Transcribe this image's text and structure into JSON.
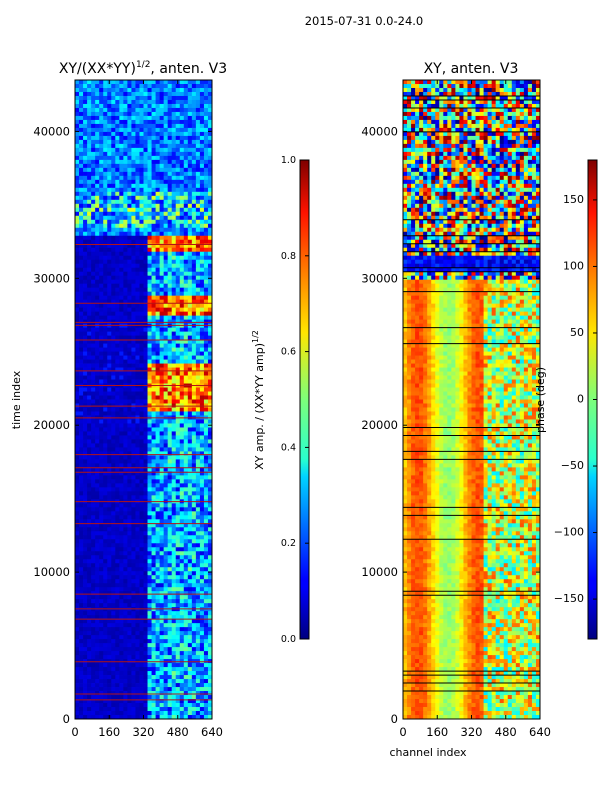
{
  "figure_title": "2015-07-31 0.0-24.0",
  "chart_data": [
    {
      "type": "heatmap",
      "title": "XY/(XX*YY)",
      "title_exponent": "1/2",
      "title_suffix": ", anten. V3",
      "xlabel": "",
      "ylabel": "time index",
      "xlim": [
        0,
        640
      ],
      "ylim": [
        0,
        43500
      ],
      "xticks": [
        0,
        160,
        320,
        480,
        640
      ],
      "yticks": [
        0,
        10000,
        20000,
        30000,
        40000
      ],
      "colorbar": {
        "label": "XY amp. / (XX*YY amp)",
        "label_exponent": "1/2",
        "range": [
          0.0,
          1.0
        ],
        "ticks": [
          0.0,
          0.2,
          0.4,
          0.6,
          0.8,
          1.0
        ],
        "tick_labels": [
          "0.0",
          "0.2",
          "0.4",
          "0.6",
          "0.8",
          "1.0"
        ]
      },
      "rfi_lines_time_index": [
        1300,
        1700,
        3900,
        6800,
        7500,
        8500,
        13300,
        14800,
        16800,
        17100,
        18000,
        20500,
        21300,
        22700,
        23700,
        25800,
        26800,
        27000,
        28300,
        32300
      ]
    },
    {
      "type": "heatmap",
      "title": "XY, anten. V3",
      "xlabel": "channel index",
      "ylabel": "",
      "xlim": [
        0,
        640
      ],
      "ylim": [
        0,
        43500
      ],
      "xticks": [
        0,
        160,
        320,
        480,
        640
      ],
      "yticks": [
        0,
        10000,
        20000,
        30000,
        40000
      ],
      "colorbar": {
        "label": "phase (deg)",
        "range": [
          -180,
          180
        ],
        "ticks": [
          -150,
          -100,
          -50,
          0,
          50,
          100,
          150
        ],
        "tick_labels": [
          "−150",
          "−100",
          "−50",
          "0",
          "50",
          "100",
          "150"
        ]
      }
    }
  ]
}
